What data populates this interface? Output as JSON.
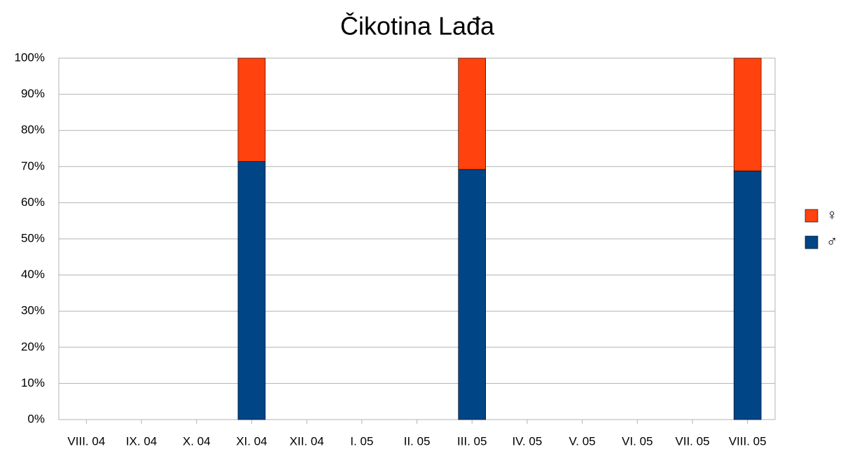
{
  "chart_data": {
    "type": "stacked_bar_percent",
    "title": "Čikotina Lađa",
    "categories": [
      "VIII. 04",
      "IX. 04",
      "X. 04",
      "XI. 04",
      "XII. 04",
      "I. 05",
      "II. 05",
      "III. 05",
      "IV. 05",
      "V. 05",
      "VI. 05",
      "VII. 05",
      "VIII. 05"
    ],
    "series": [
      {
        "name": "♀",
        "color": "#ff420e",
        "values": [
          null,
          null,
          null,
          28.6,
          null,
          null,
          null,
          30.8,
          null,
          null,
          null,
          null,
          31.2
        ]
      },
      {
        "name": "♂",
        "color": "#004586",
        "values": [
          null,
          null,
          null,
          71.4,
          null,
          null,
          null,
          69.2,
          null,
          null,
          null,
          null,
          68.8
        ]
      }
    ],
    "ylim": [
      0,
      100
    ],
    "yticks": [
      {
        "value": 0,
        "label": "0%"
      },
      {
        "value": 10,
        "label": "10%"
      },
      {
        "value": 20,
        "label": "20%"
      },
      {
        "value": 30,
        "label": "30%"
      },
      {
        "value": 40,
        "label": "40%"
      },
      {
        "value": 50,
        "label": "50%"
      },
      {
        "value": 60,
        "label": "60%"
      },
      {
        "value": 70,
        "label": "70%"
      },
      {
        "value": 80,
        "label": "80%"
      },
      {
        "value": 90,
        "label": "90%"
      },
      {
        "value": 100,
        "label": "100%"
      }
    ],
    "grid": true,
    "legend": "right"
  }
}
